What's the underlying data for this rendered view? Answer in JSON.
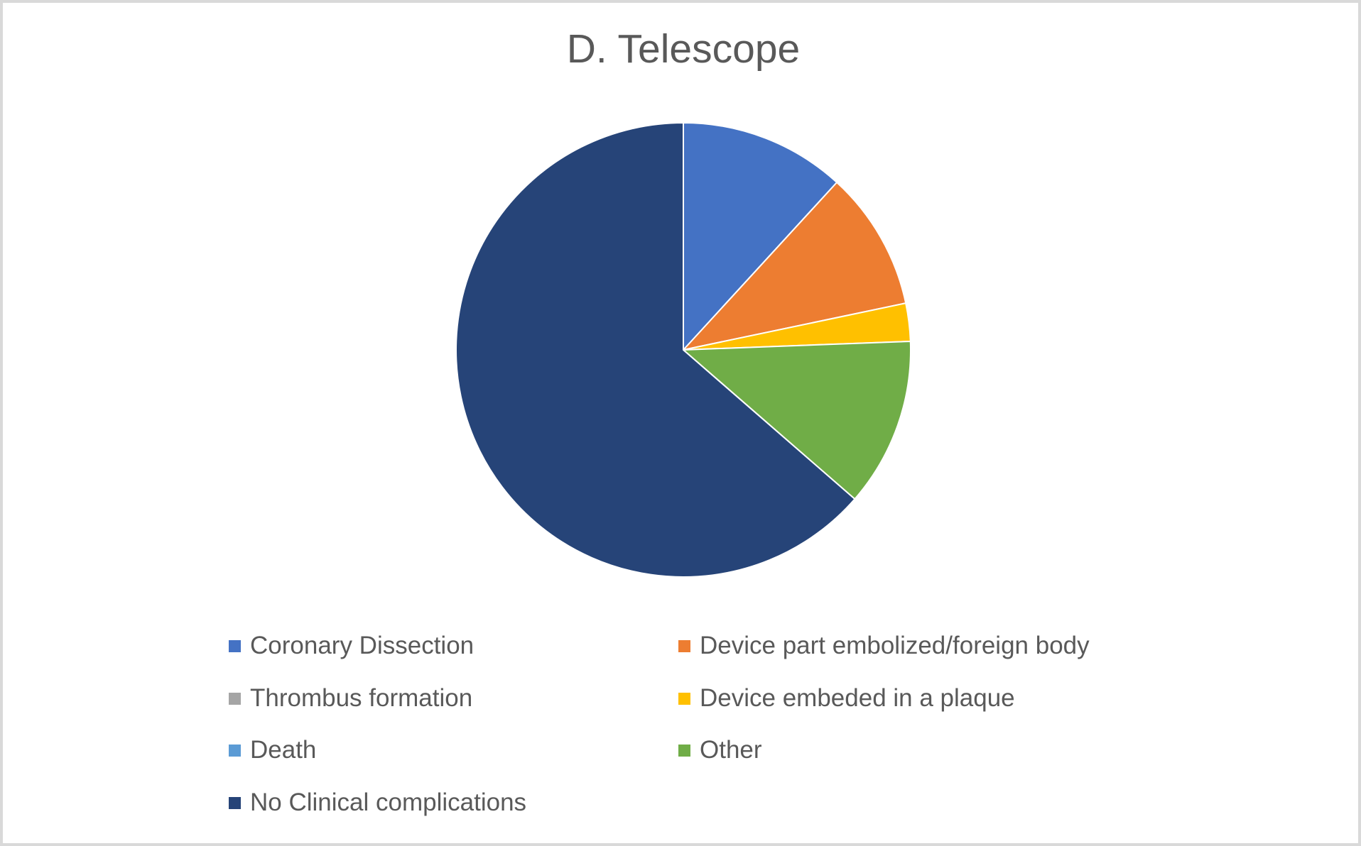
{
  "title": "D. Telescope",
  "colors": {
    "background": "#FFFFFF",
    "frame_border": "#D9D9D9",
    "title_text": "#595959",
    "legend_text": "#595959",
    "slice_separator": "#FFFFFF"
  },
  "chart_data": {
    "type": "pie",
    "title": "D. Telescope",
    "unit": "percent",
    "start_angle_deg": 0,
    "direction": "clockwise",
    "legend_position": "bottom",
    "series": [
      {
        "label": "Coronary Dissection",
        "color": "#4472C4",
        "value_pct": 11.8
      },
      {
        "label": "Device part embolized/foreign body",
        "color": "#ED7D31",
        "value_pct": 9.9
      },
      {
        "label": "Thrombus formation",
        "color": "#A5A5A5",
        "value_pct": 0
      },
      {
        "label": "Device embeded in a plaque",
        "color": "#FFC000",
        "value_pct": 2.7
      },
      {
        "label": "Death",
        "color": "#5B9BD5",
        "value_pct": 0
      },
      {
        "label": "Other",
        "color": "#70AD47",
        "value_pct": 12.0
      },
      {
        "label": "No Clinical complications",
        "color": "#264478",
        "value_pct": 63.6
      }
    ]
  }
}
